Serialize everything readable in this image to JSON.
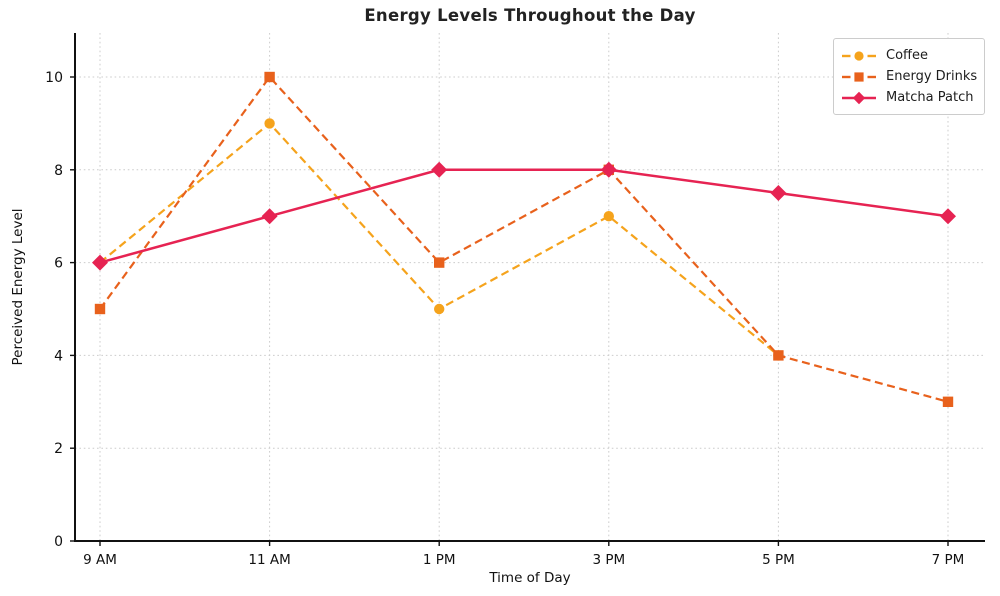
{
  "chart_data": {
    "type": "line",
    "title": "Energy Levels Throughout the Day",
    "xlabel": "Time of Day",
    "ylabel": "Perceived Energy Level",
    "categories": [
      "9 AM",
      "11 AM",
      "1 PM",
      "3 PM",
      "5 PM",
      "7 PM"
    ],
    "yticks": [
      0,
      2,
      4,
      6,
      8,
      10
    ],
    "ylim": [
      0,
      10.95
    ],
    "grid": true,
    "grid_style": "dotted",
    "legend_position": "top-right",
    "series": [
      {
        "name": "Coffee",
        "values": [
          6,
          9,
          5,
          7,
          4,
          null
        ],
        "color": "#F5A31C",
        "line_style": "dashed",
        "marker": "circle"
      },
      {
        "name": "Energy Drinks",
        "values": [
          5,
          10,
          6,
          8,
          4,
          3
        ],
        "color": "#E8611C",
        "line_style": "dashed",
        "marker": "square"
      },
      {
        "name": "Matcha Patch",
        "values": [
          6,
          7,
          8,
          8,
          7.5,
          7
        ],
        "color": "#E62352",
        "line_style": "solid",
        "marker": "diamond"
      }
    ]
  }
}
